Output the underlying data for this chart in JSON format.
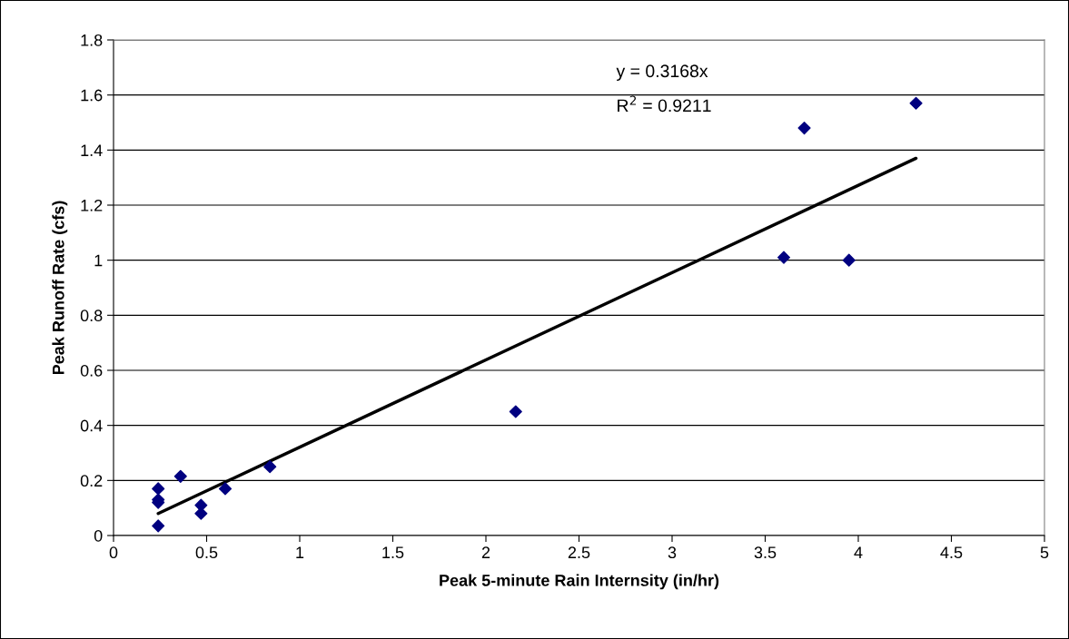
{
  "chart_data": {
    "type": "scatter",
    "xlabel": "Peak 5-minute Rain Internsity (in/hr)",
    "ylabel": "Peak Runoff Rate (cfs)",
    "series": [
      {
        "color": "#000080",
        "marker": "diamond",
        "x": [
          0.24,
          0.24,
          0.24,
          0.24,
          0.36,
          0.47,
          0.47,
          0.6,
          0.84,
          2.16,
          3.6,
          3.71,
          3.95,
          4.31
        ],
        "values": [
          0.17,
          0.13,
          0.12,
          0.035,
          0.215,
          0.11,
          0.08,
          0.17,
          0.25,
          0.45,
          1.01,
          1.48,
          1.0,
          1.57
        ]
      },
      {
        "type": "line",
        "color": "#000000",
        "marker": "none",
        "x": [
          0.24,
          4.31
        ],
        "values": [
          0.08,
          1.37
        ]
      }
    ],
    "annotations": [
      "y = 0.3168x",
      "R$^{2}$ = 0.9211"
    ],
    "xlim": [
      0,
      5
    ],
    "xticks": [
      0,
      0.5,
      1,
      1.5,
      2,
      2.5,
      3,
      3.5,
      4,
      4.5,
      5
    ],
    "ylim": [
      0,
      1.8
    ],
    "yticks": [
      0,
      0.2,
      0.4,
      0.6,
      0.8,
      1,
      1.2,
      1.4,
      1.6,
      1.8
    ],
    "grid": "y",
    "legend": false
  }
}
